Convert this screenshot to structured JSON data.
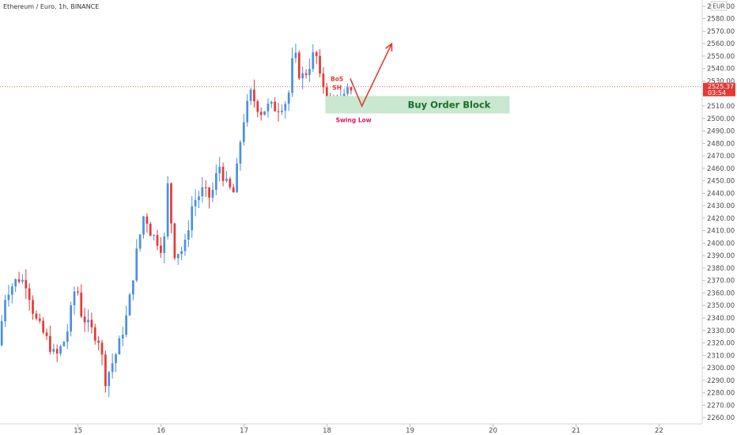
{
  "header": {
    "title": "Ethereum / Euro, 1h, BINANCE"
  },
  "price_scale": {
    "currency": "EUR",
    "current_price": "2525.37",
    "countdown": "03:54",
    "current_price_value": 2525.37
  },
  "colors": {
    "up": "#4a90e2",
    "down": "#e53935",
    "order_block_fill": "#c8e8cf",
    "order_block_text": "#1b6e2a",
    "annotation_red": "#e53935",
    "annotation_pink": "#d81b60"
  },
  "annotations": {
    "order_block_label": "Buy Order Block",
    "order_block_range": [
      2504,
      2518
    ],
    "order_block_start_x": 17.98,
    "order_block_end_x": 20.2,
    "bos_label": "BoS",
    "sh_label": "SH",
    "swing_low_label": "Swing Low",
    "projection": [
      [
        18.28,
        2532
      ],
      [
        18.42,
        2510
      ],
      [
        18.78,
        2560
      ]
    ]
  },
  "chart_data": {
    "type": "candlestick",
    "title": "Ethereum / Euro, 1h, BINANCE",
    "xlabel": "",
    "ylabel": "",
    "x_ticks": [
      {
        "label": "15",
        "value": 15
      },
      {
        "label": "16",
        "value": 16
      },
      {
        "label": "17",
        "value": 17
      },
      {
        "label": "18",
        "value": 18
      },
      {
        "label": "19",
        "value": 19
      },
      {
        "label": "20",
        "value": 20
      },
      {
        "label": "21",
        "value": 21
      },
      {
        "label": "22",
        "value": 22
      }
    ],
    "xlim": [
      14.06,
      22.52
    ],
    "y_ticks": [
      2260,
      2270,
      2280,
      2290,
      2300,
      2310,
      2320,
      2330,
      2340,
      2350,
      2360,
      2370,
      2380,
      2390,
      2400,
      2410,
      2420,
      2430,
      2440,
      2450,
      2460,
      2470,
      2480,
      2490,
      2500,
      2510,
      2520,
      2530,
      2540,
      2550,
      2560,
      2570,
      2580,
      2590
    ],
    "ylim": [
      2255,
      2595
    ],
    "grid": false,
    "keypoints": [
      [
        14.06,
        2318
      ],
      [
        14.15,
        2360
      ],
      [
        14.3,
        2372
      ],
      [
        14.4,
        2368
      ],
      [
        14.5,
        2340
      ],
      [
        14.65,
        2322
      ],
      [
        14.75,
        2308
      ],
      [
        14.88,
        2325
      ],
      [
        15.0,
        2370
      ],
      [
        15.05,
        2345
      ],
      [
        15.15,
        2333
      ],
      [
        15.28,
        2322
      ],
      [
        15.35,
        2290
      ],
      [
        15.5,
        2315
      ],
      [
        15.62,
        2345
      ],
      [
        15.72,
        2390
      ],
      [
        15.82,
        2425
      ],
      [
        15.9,
        2408
      ],
      [
        16.0,
        2400
      ],
      [
        16.05,
        2392
      ],
      [
        16.1,
        2447
      ],
      [
        16.18,
        2392
      ],
      [
        16.3,
        2395
      ],
      [
        16.4,
        2432
      ],
      [
        16.52,
        2442
      ],
      [
        16.62,
        2436
      ],
      [
        16.72,
        2463
      ],
      [
        16.82,
        2445
      ],
      [
        16.9,
        2440
      ],
      [
        17.0,
        2495
      ],
      [
        17.1,
        2520
      ],
      [
        17.22,
        2505
      ],
      [
        17.32,
        2510
      ],
      [
        17.42,
        2508
      ],
      [
        17.55,
        2515
      ],
      [
        17.62,
        2555
      ],
      [
        17.7,
        2532
      ],
      [
        17.78,
        2538
      ],
      [
        17.88,
        2555
      ],
      [
        17.95,
        2525
      ],
      [
        18.0,
        2528
      ],
      [
        18.05,
        2505
      ],
      [
        18.12,
        2518
      ],
      [
        18.2,
        2513
      ],
      [
        18.3,
        2525
      ]
    ]
  }
}
